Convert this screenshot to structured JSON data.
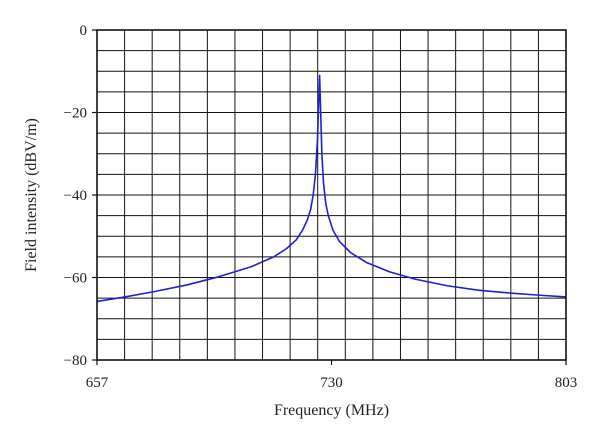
{
  "chart_data": {
    "type": "line",
    "title": "",
    "xlabel": "Frequency (MHz)",
    "ylabel": "Field intensity (dBV/m)",
    "xlim": [
      657,
      803
    ],
    "ylim": [
      -80,
      0
    ],
    "xticks": [
      657,
      730,
      803
    ],
    "yticks": [
      0,
      -20,
      -40,
      -60,
      -80
    ],
    "ytick_labels": [
      "0",
      "−20",
      "−40",
      "−60",
      "−80"
    ],
    "grid": true,
    "grid_x_divisions": 17,
    "grid_y_divisions": 16,
    "series": [
      {
        "color": "#1f1fd0",
        "x": [
          657,
          665,
          675,
          685,
          695,
          705,
          712,
          716,
          719,
          721,
          722.5,
          723.5,
          724.3,
          725.0,
          725.6,
          726.0,
          726.3,
          726.6,
          727.0,
          727.5,
          728.2,
          729.0,
          730.5,
          732.5,
          736,
          741,
          748,
          756,
          766,
          776,
          786,
          795,
          803
        ],
        "y": [
          -65.8,
          -64.8,
          -63.4,
          -61.8,
          -59.8,
          -57.4,
          -55.0,
          -53.0,
          -50.9,
          -48.5,
          -46.0,
          -43.5,
          -40.0,
          -35.0,
          -27.0,
          -18.0,
          -11.0,
          -19.0,
          -30.0,
          -37.0,
          -42.0,
          -45.0,
          -48.6,
          -51.3,
          -54.0,
          -56.4,
          -58.6,
          -60.4,
          -62.0,
          -63.1,
          -63.8,
          -64.3,
          -64.7
        ]
      }
    ]
  }
}
